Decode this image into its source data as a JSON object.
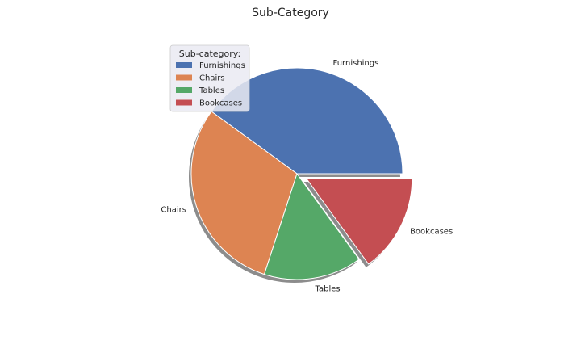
{
  "chart_data": {
    "type": "pie",
    "title": "Sub-Category",
    "categories": [
      "Furnishings",
      "Chairs",
      "Tables",
      "Bookcases"
    ],
    "values": [
      40,
      30,
      15,
      15
    ],
    "colors": [
      "#4c72b0",
      "#dd8452",
      "#55a868",
      "#c44e52"
    ],
    "explode": [
      0,
      0,
      0,
      0.1
    ],
    "shadow": true,
    "start_angle_deg": 0,
    "counterclock": true,
    "legend": {
      "title": "Sub-category:",
      "placement": "upper-left",
      "entries": [
        "Furnishings",
        "Chairs",
        "Tables",
        "Bookcases"
      ]
    }
  }
}
